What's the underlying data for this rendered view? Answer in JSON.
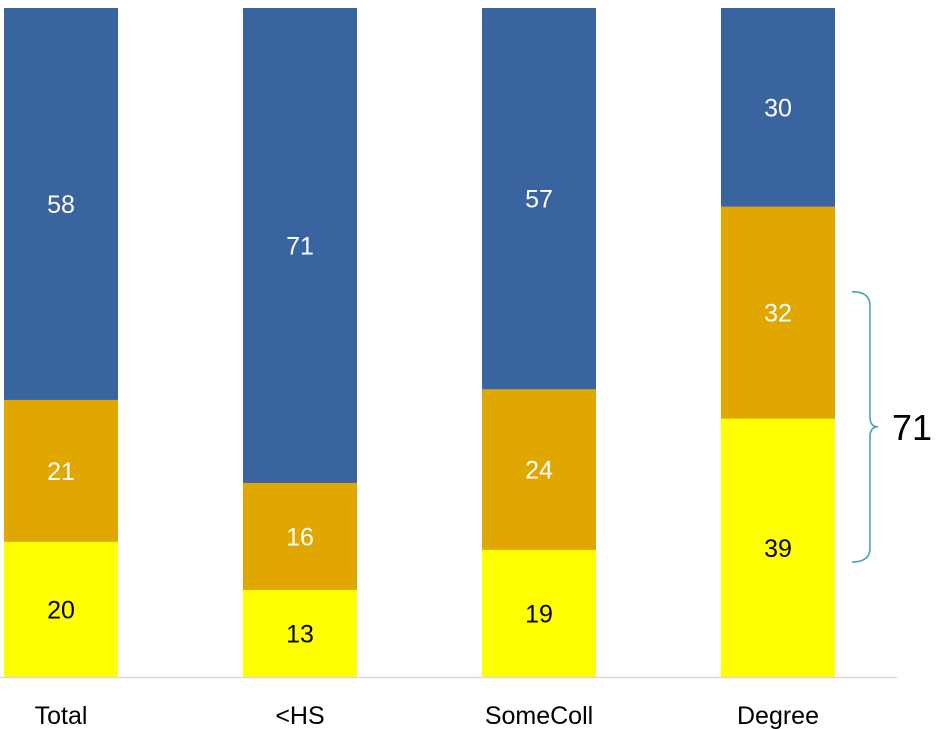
{
  "colors": {
    "top": "#3A64A0",
    "middle": "#DFA700",
    "bottom": "#FFFF00",
    "axis": "#D9D9D9",
    "bracket": "#4AA3B5",
    "label_dark": "#000000",
    "label_light": "#FFFFFF"
  },
  "chart_data": {
    "type": "bar",
    "stacked": true,
    "categories": [
      "Total",
      "<HS",
      "SomeColl",
      "Degree"
    ],
    "series": [
      {
        "values": [
          20,
          13,
          19,
          39
        ],
        "color": "#FFFF00"
      },
      {
        "values": [
          21,
          16,
          24,
          32
        ],
        "color": "#DFA700"
      },
      {
        "values": [
          58,
          71,
          57,
          30
        ],
        "color": "#3A64A0"
      }
    ],
    "ylim": [
      0,
      100
    ],
    "grid": false,
    "legend": "none",
    "annotation": {
      "text": "71",
      "category": "Degree",
      "spans_series": [
        0,
        1
      ]
    }
  }
}
